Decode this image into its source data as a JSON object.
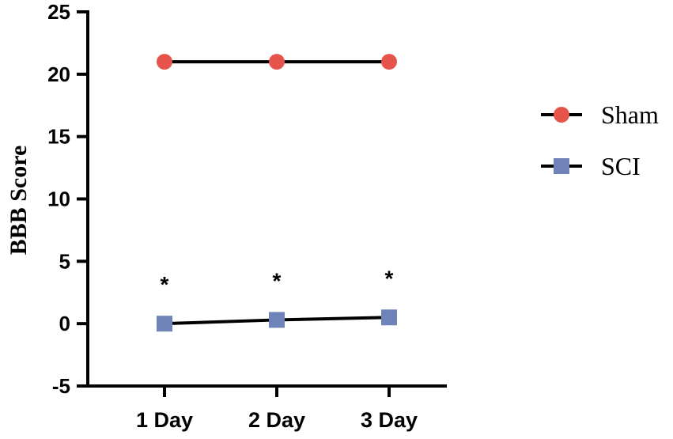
{
  "chart_data": {
    "type": "line",
    "categories": [
      "1 Day",
      "2 Day",
      "3 Day"
    ],
    "series": [
      {
        "name": "Sham",
        "values": [
          21,
          21,
          21
        ],
        "color": "#e5534b",
        "marker": "circle"
      },
      {
        "name": "SCI",
        "values": [
          0,
          0.3,
          0.5
        ],
        "color": "#6f83b8",
        "marker": "square"
      }
    ],
    "ylabel": "BBB Score",
    "xlabel": "",
    "ylim": [
      -5,
      25
    ],
    "yticks": [
      "-5",
      "0",
      "5",
      "10",
      "15",
      "20",
      "25"
    ],
    "annotations": [
      "*",
      "*",
      "*"
    ],
    "legend_position": "right",
    "grid": false,
    "line_color": "#000000"
  }
}
